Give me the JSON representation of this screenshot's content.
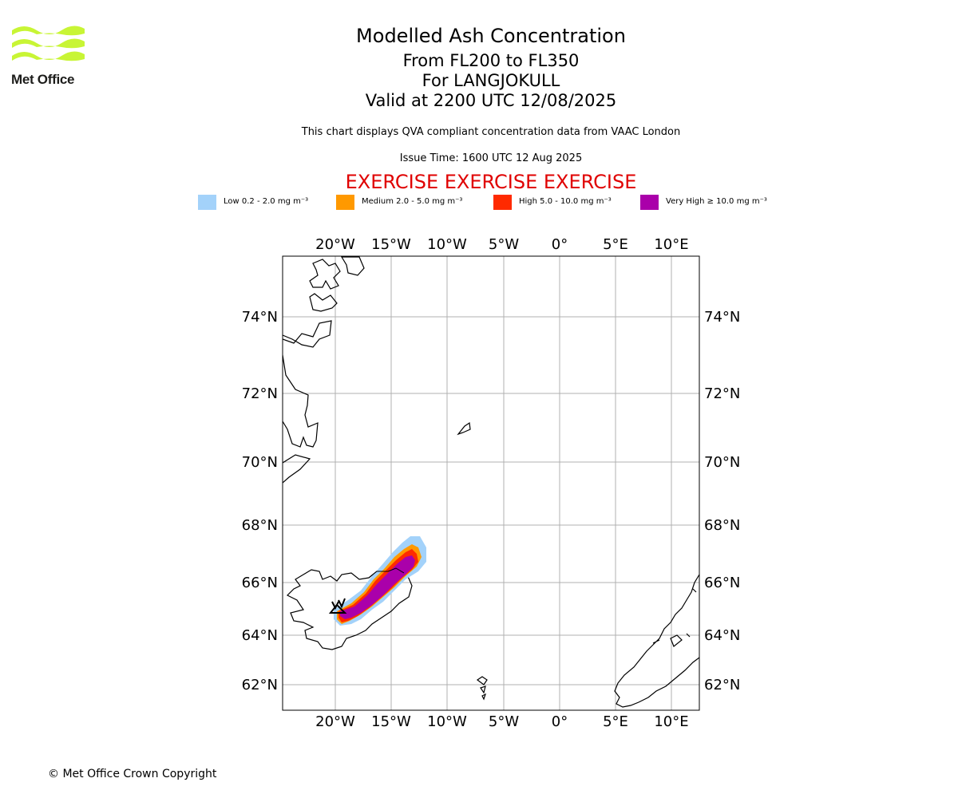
{
  "logo": {
    "text": "Met Office",
    "colors": {
      "waves": "#c8f535",
      "text": "#1d1d1b"
    }
  },
  "header": {
    "title": "Modelled Ash Concentration",
    "levels": "From FL200 to FL350",
    "volcano": "For LANGJOKULL",
    "valid": "Valid at 2200 UTC 12/08/2025",
    "note": "This chart displays QVA compliant concentration data from VAAC London",
    "issue": "Issue Time: 1600 UTC 12 Aug 2025",
    "exercise": "EXERCISE EXERCISE EXERCISE"
  },
  "legend": [
    {
      "label": "Low 0.2 - 2.0 mg m⁻³",
      "color": "#a3d2fa"
    },
    {
      "label": "Medium 2.0 - 5.0 mg m⁻³",
      "color": "#ff9900"
    },
    {
      "label": "High 5.0 - 10.0 mg m⁻³",
      "color": "#ff2a00"
    },
    {
      "label": "Very High ≥ 10.0 mg m⁻³",
      "color": "#aa00aa"
    }
  ],
  "map": {
    "lon_ticks": [
      "20°W",
      "15°W",
      "10°W",
      "5°W",
      "0°",
      "5°E",
      "10°E"
    ],
    "lat_ticks": [
      "74°N",
      "72°N",
      "70°N",
      "68°N",
      "66°N",
      "64°N",
      "62°N"
    ],
    "extent": {
      "lon": [
        -24.7,
        12.3
      ],
      "lat": [
        61.3,
        75.6
      ]
    },
    "gridlines": true,
    "volcano_marker": "Langjokull"
  },
  "footer": {
    "copyright": "© Met Office Crown Copyright"
  }
}
